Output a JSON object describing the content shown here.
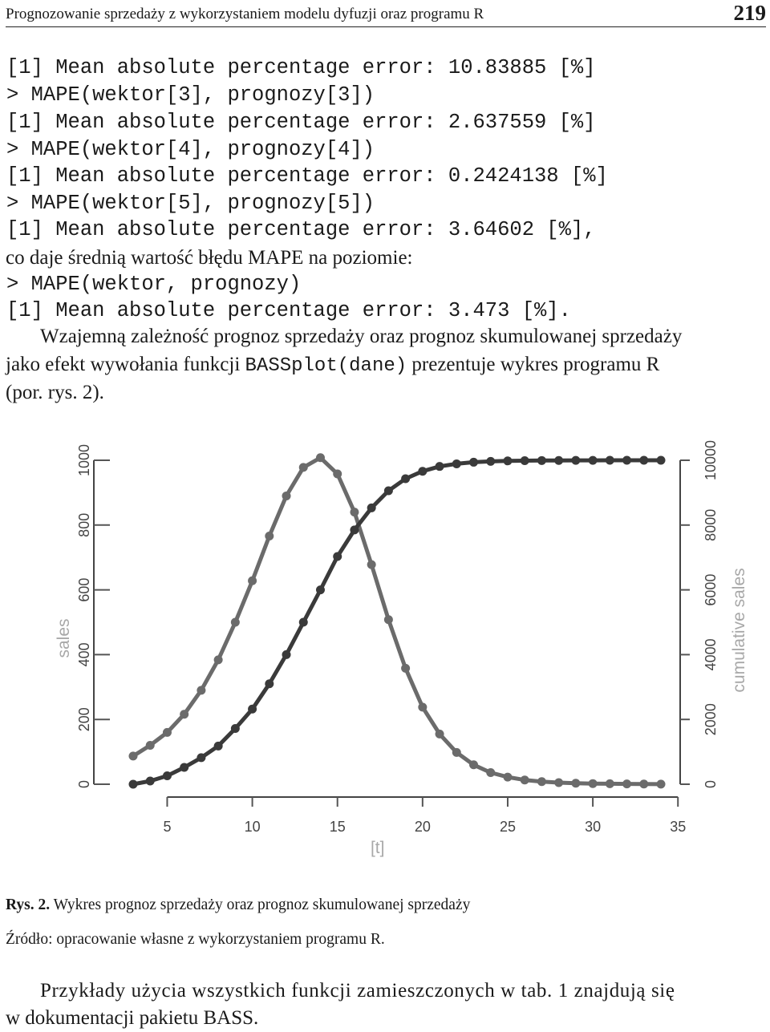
{
  "header": {
    "title": "Prognozowanie sprzedaży z wykorzystaniem modelu dyfuzji oraz programu R",
    "page_number": "219"
  },
  "code_lines": [
    "[1] Mean absolute percentage error: 10.83885 [%]",
    "> MAPE(wektor[3], prognozy[3])",
    "[1] Mean absolute percentage error: 2.637559 [%]",
    "> MAPE(wektor[4], prognozy[4])",
    "[1] Mean absolute percentage error: 0.2424138 [%]",
    "> MAPE(wektor[5], prognozy[5])",
    "[1] Mean absolute percentage error: 3.64602 [%],"
  ],
  "prose_mape": "co daje średnią wartość błędu MAPE na poziomie:",
  "code_lines_2": [
    "> MAPE(wektor, prognozy)",
    "[1] Mean absolute percentage error: 3.473 [%]."
  ],
  "paragraph": {
    "line1": "Wzajemną zależność prognoz sprzedaży oraz prognoz skumulowanej sprzedaży",
    "line2_pre": "jako efekt wywołania funkcji ",
    "line2_code": "BASSplot(dane)",
    "line2_post": " prezentuje wykres programu R",
    "line3": "(por. rys. 2)."
  },
  "chart_data": {
    "type": "line",
    "xlabel": "[t]",
    "ylabel_left": "sales",
    "ylabel_right": "cumulative sales",
    "x_ticks": [
      "5",
      "10",
      "15",
      "20",
      "25",
      "30",
      "35"
    ],
    "y_left_ticks": [
      "0",
      "200",
      "400",
      "600",
      "800",
      "1000"
    ],
    "y_right_ticks": [
      "0",
      "2000",
      "4000",
      "6000",
      "8000",
      "10000"
    ],
    "xlim": [
      2,
      35
    ],
    "ylim_left": [
      0,
      1000
    ],
    "ylim_right": [
      0,
      10000
    ],
    "x": [
      3,
      4,
      5,
      6,
      7,
      8,
      9,
      10,
      11,
      12,
      13,
      14,
      15,
      16,
      17,
      18,
      19,
      20,
      21,
      22,
      23,
      24,
      25,
      26,
      27,
      28,
      29,
      30,
      31,
      32,
      33,
      34
    ],
    "series": [
      {
        "axis": "left",
        "color": "#6b6b6b",
        "values": [
          87,
          120,
          160,
          216,
          290,
          384,
          500,
          628,
          766,
          890,
          978,
          1008,
          958,
          840,
          678,
          508,
          358,
          238,
          155,
          98,
          60,
          36,
          22,
          13,
          8,
          5,
          3,
          2,
          1.5,
          1,
          0.5,
          0.3
        ]
      },
      {
        "axis": "right",
        "color": "#3a3a3a",
        "values": [
          0,
          100,
          260,
          520,
          820,
          1180,
          1720,
          2320,
          3100,
          4000,
          5000,
          6000,
          7030,
          7850,
          8530,
          9060,
          9430,
          9660,
          9810,
          9890,
          9940,
          9965,
          9980,
          9988,
          9992,
          9995,
          9997,
          9998,
          9999,
          9999,
          10000,
          10000
        ]
      }
    ]
  },
  "caption": {
    "label": "Rys. 2.",
    "text": " Wykres prognoz sprzedaży oraz prognoz skumulowanej sprzedaży",
    "source": "Źródło: opracowanie własne z wykorzystaniem programu R."
  },
  "final_paragraph": {
    "line1": "Przykłady użycia wszystkich funkcji zamieszczonych w tab. 1 znajdują się",
    "line2": "w dokumentacji pakietu BASS."
  }
}
